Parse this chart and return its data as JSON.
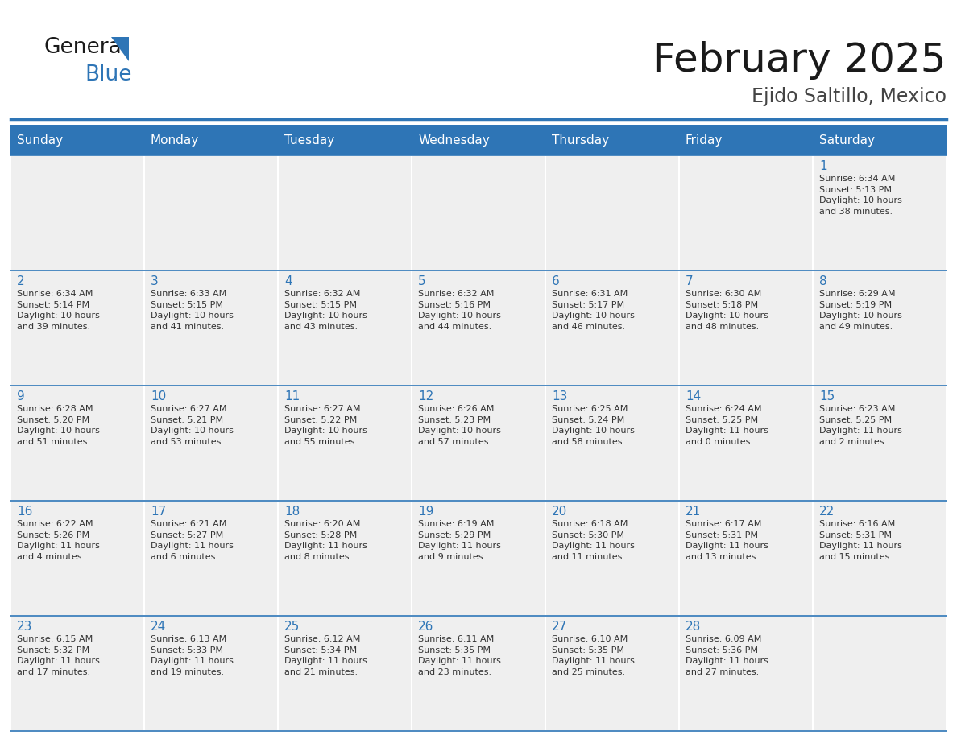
{
  "title": "February 2025",
  "subtitle": "Ejido Saltillo, Mexico",
  "header_bg": "#2E75B6",
  "header_text": "#FFFFFF",
  "cell_bg": "#EFEFEF",
  "border_color": "#2E75B6",
  "text_color": "#333333",
  "day_num_color": "#2E75B6",
  "day_names": [
    "Sunday",
    "Monday",
    "Tuesday",
    "Wednesday",
    "Thursday",
    "Friday",
    "Saturday"
  ],
  "weeks": [
    [
      {
        "day": "",
        "info": ""
      },
      {
        "day": "",
        "info": ""
      },
      {
        "day": "",
        "info": ""
      },
      {
        "day": "",
        "info": ""
      },
      {
        "day": "",
        "info": ""
      },
      {
        "day": "",
        "info": ""
      },
      {
        "day": "1",
        "info": "Sunrise: 6:34 AM\nSunset: 5:13 PM\nDaylight: 10 hours\nand 38 minutes."
      }
    ],
    [
      {
        "day": "2",
        "info": "Sunrise: 6:34 AM\nSunset: 5:14 PM\nDaylight: 10 hours\nand 39 minutes."
      },
      {
        "day": "3",
        "info": "Sunrise: 6:33 AM\nSunset: 5:15 PM\nDaylight: 10 hours\nand 41 minutes."
      },
      {
        "day": "4",
        "info": "Sunrise: 6:32 AM\nSunset: 5:15 PM\nDaylight: 10 hours\nand 43 minutes."
      },
      {
        "day": "5",
        "info": "Sunrise: 6:32 AM\nSunset: 5:16 PM\nDaylight: 10 hours\nand 44 minutes."
      },
      {
        "day": "6",
        "info": "Sunrise: 6:31 AM\nSunset: 5:17 PM\nDaylight: 10 hours\nand 46 minutes."
      },
      {
        "day": "7",
        "info": "Sunrise: 6:30 AM\nSunset: 5:18 PM\nDaylight: 10 hours\nand 48 minutes."
      },
      {
        "day": "8",
        "info": "Sunrise: 6:29 AM\nSunset: 5:19 PM\nDaylight: 10 hours\nand 49 minutes."
      }
    ],
    [
      {
        "day": "9",
        "info": "Sunrise: 6:28 AM\nSunset: 5:20 PM\nDaylight: 10 hours\nand 51 minutes."
      },
      {
        "day": "10",
        "info": "Sunrise: 6:27 AM\nSunset: 5:21 PM\nDaylight: 10 hours\nand 53 minutes."
      },
      {
        "day": "11",
        "info": "Sunrise: 6:27 AM\nSunset: 5:22 PM\nDaylight: 10 hours\nand 55 minutes."
      },
      {
        "day": "12",
        "info": "Sunrise: 6:26 AM\nSunset: 5:23 PM\nDaylight: 10 hours\nand 57 minutes."
      },
      {
        "day": "13",
        "info": "Sunrise: 6:25 AM\nSunset: 5:24 PM\nDaylight: 10 hours\nand 58 minutes."
      },
      {
        "day": "14",
        "info": "Sunrise: 6:24 AM\nSunset: 5:25 PM\nDaylight: 11 hours\nand 0 minutes."
      },
      {
        "day": "15",
        "info": "Sunrise: 6:23 AM\nSunset: 5:25 PM\nDaylight: 11 hours\nand 2 minutes."
      }
    ],
    [
      {
        "day": "16",
        "info": "Sunrise: 6:22 AM\nSunset: 5:26 PM\nDaylight: 11 hours\nand 4 minutes."
      },
      {
        "day": "17",
        "info": "Sunrise: 6:21 AM\nSunset: 5:27 PM\nDaylight: 11 hours\nand 6 minutes."
      },
      {
        "day": "18",
        "info": "Sunrise: 6:20 AM\nSunset: 5:28 PM\nDaylight: 11 hours\nand 8 minutes."
      },
      {
        "day": "19",
        "info": "Sunrise: 6:19 AM\nSunset: 5:29 PM\nDaylight: 11 hours\nand 9 minutes."
      },
      {
        "day": "20",
        "info": "Sunrise: 6:18 AM\nSunset: 5:30 PM\nDaylight: 11 hours\nand 11 minutes."
      },
      {
        "day": "21",
        "info": "Sunrise: 6:17 AM\nSunset: 5:31 PM\nDaylight: 11 hours\nand 13 minutes."
      },
      {
        "day": "22",
        "info": "Sunrise: 6:16 AM\nSunset: 5:31 PM\nDaylight: 11 hours\nand 15 minutes."
      }
    ],
    [
      {
        "day": "23",
        "info": "Sunrise: 6:15 AM\nSunset: 5:32 PM\nDaylight: 11 hours\nand 17 minutes."
      },
      {
        "day": "24",
        "info": "Sunrise: 6:13 AM\nSunset: 5:33 PM\nDaylight: 11 hours\nand 19 minutes."
      },
      {
        "day": "25",
        "info": "Sunrise: 6:12 AM\nSunset: 5:34 PM\nDaylight: 11 hours\nand 21 minutes."
      },
      {
        "day": "26",
        "info": "Sunrise: 6:11 AM\nSunset: 5:35 PM\nDaylight: 11 hours\nand 23 minutes."
      },
      {
        "day": "27",
        "info": "Sunrise: 6:10 AM\nSunset: 5:35 PM\nDaylight: 11 hours\nand 25 minutes."
      },
      {
        "day": "28",
        "info": "Sunrise: 6:09 AM\nSunset: 5:36 PM\nDaylight: 11 hours\nand 27 minutes."
      },
      {
        "day": "",
        "info": ""
      }
    ]
  ],
  "logo_general_color": "#1a1a1a",
  "logo_blue_color": "#2E75B6"
}
